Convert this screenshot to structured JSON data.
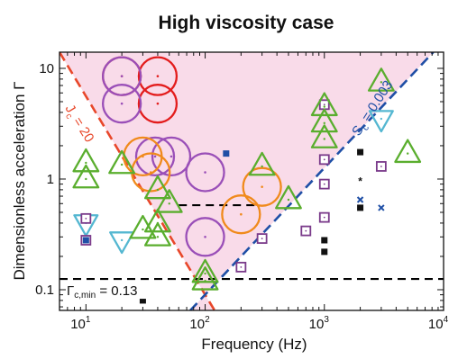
{
  "chart_data": {
    "type": "scatter",
    "title": "High viscosity case",
    "xlabel": "Frequency (Hz)",
    "ylabel": "Dimensionless acceleration Γ",
    "x_scale": "log",
    "y_scale": "log",
    "xlim": [
      6,
      10000
    ],
    "ylim": [
      0.065,
      14
    ],
    "x_ticks": [
      {
        "value": 10,
        "base": "10",
        "exp": "1"
      },
      {
        "value": 100,
        "base": "10",
        "exp": "2"
      },
      {
        "value": 1000,
        "base": "10",
        "exp": "3"
      },
      {
        "value": 10000,
        "base": "10",
        "exp": "4"
      }
    ],
    "y_ticks": [
      {
        "value": 0.1,
        "label": "0.1"
      },
      {
        "value": 1,
        "label": "1"
      },
      {
        "value": 10,
        "label": "10"
      }
    ],
    "shaded_region_color": "#f9dbe9",
    "annotations": {
      "jc_label": "J",
      "jc_sub": "c",
      "jc_value": " = 20",
      "sc_label": "S",
      "sc_sub": "c",
      "sc_value": " = 0.003",
      "gamma_label": "Γ",
      "gamma_sub": "c,min",
      "gamma_value": " = 0.13"
    },
    "reference_lines": [
      {
        "name": "Jc = 20",
        "color": "#e8472a",
        "style": "dashed",
        "points": [
          [
            6,
            14
          ],
          [
            120,
            0.065
          ]
        ]
      },
      {
        "name": "Sc = 0.003",
        "color": "#1f4fa6",
        "style": "dashed",
        "points": [
          [
            75,
            0.065
          ],
          [
            8200,
            14
          ]
        ]
      },
      {
        "name": "Γc,min = 0.13",
        "color": "#000000",
        "style": "dashed",
        "points": [
          [
            6,
            0.125
          ],
          [
            10000,
            0.125
          ]
        ]
      },
      {
        "name": "",
        "color": "#000000",
        "style": "dashed",
        "points": [
          [
            60,
            0.58
          ],
          [
            260,
            0.58
          ]
        ]
      }
    ],
    "marker_colors": {
      "red": "#e31c1c",
      "purple": "#9a4fb8",
      "orange": "#f08a1c",
      "green": "#5aae2e",
      "cyan": "#54b7d1",
      "blue": "#1f4fa6",
      "square_purple": "#7a3a8a",
      "black": "#111111"
    },
    "series": [
      {
        "marker": "large-circle",
        "color": "red",
        "points": [
          [
            20,
            8.5
          ],
          [
            40,
            8.5
          ],
          [
            40,
            4.8
          ]
        ]
      },
      {
        "marker": "large-circle",
        "color": "purple",
        "points": [
          [
            20,
            8.5
          ],
          [
            20,
            4.8
          ],
          [
            38,
            1.6
          ],
          [
            52,
            1.6
          ],
          [
            100,
            1.15
          ],
          [
            100,
            0.3
          ]
        ]
      },
      {
        "marker": "large-circle",
        "color": "orange",
        "points": [
          [
            30,
            1.6
          ],
          [
            35,
            1.15
          ],
          [
            200,
            0.48
          ],
          [
            300,
            0.85
          ]
        ]
      },
      {
        "marker": "triangle-up",
        "color": "green",
        "points": [
          [
            10,
            1.4
          ],
          [
            10,
            1.0
          ],
          [
            20,
            1.35
          ],
          [
            30,
            0.35
          ],
          [
            40,
            0.8
          ],
          [
            40,
            0.4
          ],
          [
            50,
            0.6
          ],
          [
            40,
            0.3
          ],
          [
            100,
            0.12
          ],
          [
            100,
            0.14
          ],
          [
            300,
            1.3
          ],
          [
            500,
            0.65
          ],
          [
            1000,
            4.5
          ],
          [
            1000,
            3.2
          ],
          [
            1000,
            2.3
          ],
          [
            3000,
            7.5
          ],
          [
            5000,
            1.7
          ]
        ]
      },
      {
        "marker": "triangle-down",
        "color": "cyan",
        "points": [
          [
            10,
            0.4
          ],
          [
            20,
            0.28
          ],
          [
            3000,
            3.5
          ]
        ]
      },
      {
        "marker": "open-square",
        "color": "square_purple",
        "points": [
          [
            10,
            0.44
          ],
          [
            10,
            0.28
          ],
          [
            200,
            0.16
          ],
          [
            300,
            0.29
          ],
          [
            700,
            0.34
          ],
          [
            1000,
            0.45
          ],
          [
            1000,
            0.9
          ],
          [
            1000,
            1.5
          ],
          [
            1000,
            4.7
          ],
          [
            3000,
            1.3
          ]
        ]
      },
      {
        "marker": "filled-square",
        "color": "blue",
        "points": [
          [
            10,
            0.28
          ],
          [
            150,
            1.7
          ]
        ]
      },
      {
        "marker": "filled-square",
        "color": "black",
        "points": [
          [
            30,
            0.08
          ],
          [
            1000,
            0.28
          ],
          [
            1000,
            0.22
          ],
          [
            2000,
            1.75
          ],
          [
            2000,
            0.55
          ]
        ]
      },
      {
        "marker": "star",
        "color": "black",
        "points": [
          [
            2000,
            0.95
          ]
        ]
      },
      {
        "marker": "cross",
        "color": "blue",
        "points": [
          [
            2000,
            0.65
          ],
          [
            3000,
            0.55
          ]
        ]
      }
    ]
  }
}
